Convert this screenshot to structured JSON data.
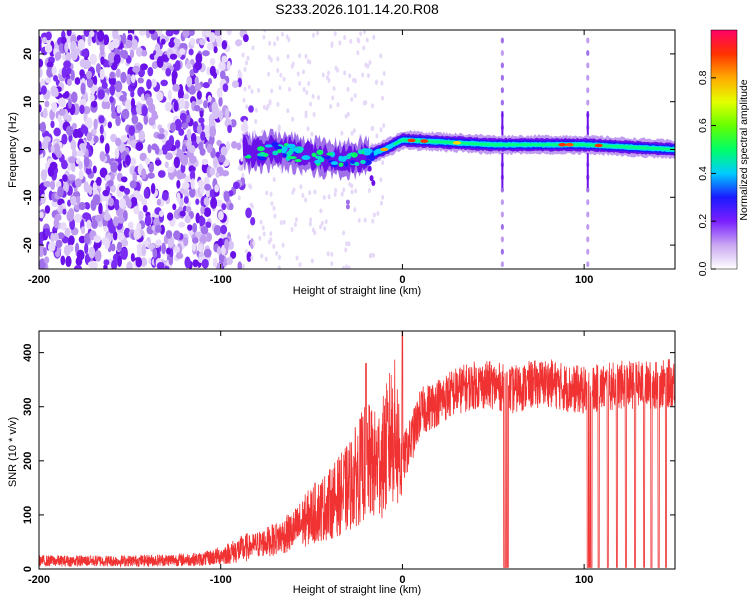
{
  "title": "S233.2026.101.14.20.R08",
  "chart_data": [
    {
      "type": "heatmap",
      "xlabel": "Height of straight line (km)",
      "ylabel": "Frequency (Hz)",
      "xlim": [
        -200,
        150
      ],
      "ylim": [
        -25,
        25
      ],
      "x_ticks": [
        -200,
        -100,
        0,
        100
      ],
      "y_ticks": [
        -20,
        -10,
        0,
        10,
        20
      ],
      "colorbar": {
        "label": "Normalized spectral amplitude",
        "range": [
          0,
          1
        ],
        "ticks": [
          0.0,
          0.2,
          0.4,
          0.6,
          0.8
        ]
      },
      "features": {
        "noise_region_x": [
          -200,
          -90
        ],
        "ridge_center_hz": [
          [
            -85,
            -1
          ],
          [
            -70,
            0
          ],
          [
            -55,
            -1
          ],
          [
            -40,
            -2
          ],
          [
            -25,
            -2
          ],
          [
            -10,
            0
          ],
          [
            0,
            2
          ],
          [
            50,
            1
          ],
          [
            100,
            1
          ],
          [
            150,
            0
          ]
        ],
        "vertical_streak_x": [
          55,
          102
        ]
      }
    },
    {
      "type": "line",
      "xlabel": "Height of straight line (km)",
      "ylabel": "SNR (10 * v/v)",
      "xlim": [
        -200,
        150
      ],
      "ylim": [
        0,
        440
      ],
      "x_ticks": [
        -200,
        -100,
        0,
        100
      ],
      "y_ticks": [
        0,
        100,
        200,
        300,
        400
      ],
      "color": "#f03232",
      "series": [
        {
          "x": [
            -200,
            -150,
            -110,
            -100,
            -90,
            -80,
            -70,
            -60,
            -50,
            -40,
            -30,
            -20,
            -15,
            -10,
            -5,
            0,
            5,
            10,
            20,
            30,
            40,
            50,
            60,
            70,
            80,
            90,
            100,
            110,
            120,
            130,
            140,
            150
          ],
          "values": [
            15,
            15,
            18,
            25,
            35,
            45,
            55,
            70,
            100,
            120,
            150,
            200,
            190,
            210,
            260,
            200,
            240,
            290,
            310,
            330,
            340,
            340,
            330,
            340,
            345,
            335,
            330,
            335,
            340,
            340,
            340,
            345
          ]
        }
      ],
      "spikes": [
        {
          "x": -20,
          "value": 380
        },
        {
          "x": 0,
          "value": 440
        }
      ],
      "dropouts_x": [
        56,
        57,
        58,
        102,
        103,
        104,
        108,
        113,
        118,
        123,
        128,
        133,
        137,
        141,
        145
      ]
    }
  ]
}
